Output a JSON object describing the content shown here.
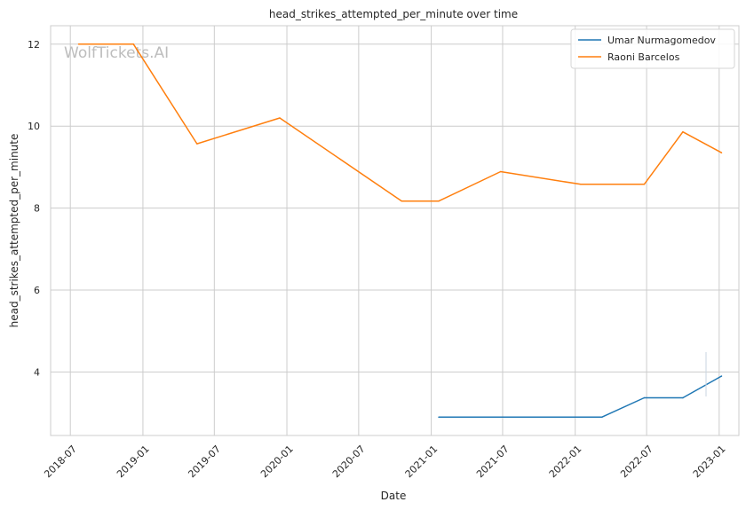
{
  "chart_data": {
    "type": "line",
    "title": "head_strikes_attempted_per_minute over time",
    "xlabel": "Date",
    "ylabel": "head_strikes_attempted_per_minute",
    "watermark": "WolfTickets.AI",
    "x_ticks": [
      "2018-07",
      "2019-01",
      "2019-07",
      "2020-01",
      "2020-07",
      "2021-01",
      "2021-07",
      "2022-01",
      "2022-07",
      "2023-01"
    ],
    "y_ticks": [
      "4",
      "6",
      "8",
      "10",
      "12"
    ],
    "xlim": [
      "2018-05-12",
      "2023-02-20"
    ],
    "ylim": [
      2.45,
      12.45
    ],
    "grid": true,
    "legend_position": "top-right",
    "series": [
      {
        "name": "Umar Nurmagomedov",
        "color": "#1f77b4",
        "points": [
          {
            "x": "2021-01-20",
            "y": 2.9
          },
          {
            "x": "2022-03-10",
            "y": 2.9
          },
          {
            "x": "2022-06-25",
            "y": 3.37
          },
          {
            "x": "2022-10-01",
            "y": 3.37
          },
          {
            "x": "2023-01-07",
            "y": 3.9
          }
        ]
      },
      {
        "name": "Raoni Barcelos",
        "color": "#ff7f0e",
        "points": [
          {
            "x": "2018-07-22",
            "y": 12.0
          },
          {
            "x": "2018-12-08",
            "y": 12.0
          },
          {
            "x": "2019-05-18",
            "y": 9.57
          },
          {
            "x": "2019-12-14",
            "y": 10.2
          },
          {
            "x": "2020-10-18",
            "y": 8.17
          },
          {
            "x": "2021-01-20",
            "y": 8.17
          },
          {
            "x": "2021-06-26",
            "y": 8.89
          },
          {
            "x": "2022-01-15",
            "y": 8.58
          },
          {
            "x": "2022-06-25",
            "y": 8.58
          },
          {
            "x": "2022-10-01",
            "y": 9.86
          },
          {
            "x": "2023-01-07",
            "y": 9.35
          }
        ]
      }
    ]
  }
}
